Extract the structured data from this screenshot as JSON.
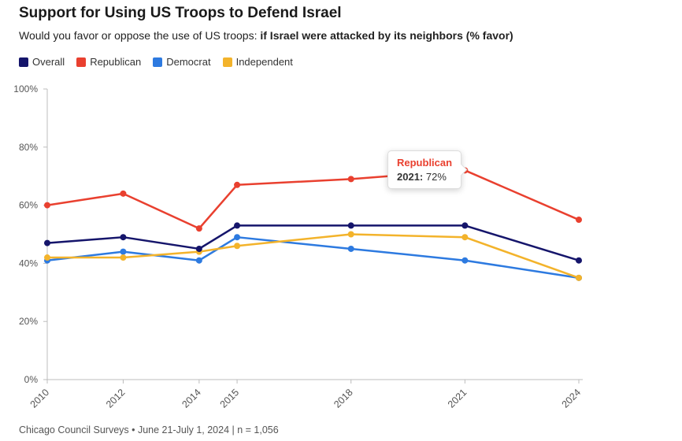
{
  "header": {
    "title": "Support for Using US Troops to Defend Israel",
    "subtitle_regular": "Would you favor or oppose the use of US troops: ",
    "subtitle_bold": "if Israel were attacked by its neighbors (% favor)"
  },
  "legend": [
    {
      "label": "Overall",
      "color": "#15156b"
    },
    {
      "label": "Republican",
      "color": "#e9402f"
    },
    {
      "label": "Democrat",
      "color": "#2d7ae0"
    },
    {
      "label": "Independent",
      "color": "#f3b32b"
    }
  ],
  "tooltip": {
    "title": "Republican",
    "label": "2021:",
    "value": "72%"
  },
  "footer": {
    "text": "Chicago Council Surveys • June 21-July 1, 2024 | n = 1,056"
  },
  "chart_data": {
    "type": "line",
    "x": [
      2010,
      2012,
      2014,
      2015,
      2018,
      2021,
      2024
    ],
    "xticks": [
      2010,
      2012,
      2014,
      2015,
      2018,
      2021,
      2024
    ],
    "series": [
      {
        "name": "Overall",
        "color": "#15156b",
        "values": [
          47,
          49,
          45,
          53,
          53,
          53,
          41
        ]
      },
      {
        "name": "Republican",
        "color": "#e9402f",
        "values": [
          60,
          64,
          52,
          67,
          69,
          72,
          55
        ]
      },
      {
        "name": "Democrat",
        "color": "#2d7ae0",
        "values": [
          41,
          44,
          41,
          49,
          45,
          41,
          35
        ]
      },
      {
        "name": "Independent",
        "color": "#f3b32b",
        "values": [
          42,
          42,
          44,
          46,
          50,
          49,
          35
        ]
      }
    ],
    "ylim": [
      0,
      100
    ],
    "yticks": [
      0,
      20,
      40,
      60,
      80,
      100
    ],
    "ytick_suffix": "%",
    "grid": false,
    "legend_position": "top",
    "annotation": {
      "series": "Republican",
      "x": 2021,
      "value": 72
    }
  }
}
